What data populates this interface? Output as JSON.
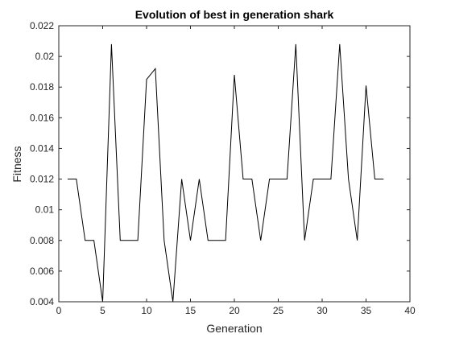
{
  "chart_data": {
    "type": "line",
    "title": "Evolution of best in generation shark",
    "xlabel": "Generation",
    "ylabel": "Fitness",
    "xlim": [
      0,
      40
    ],
    "ylim": [
      0.004,
      0.022
    ],
    "xticks": [
      0,
      5,
      10,
      15,
      20,
      25,
      30,
      35,
      40
    ],
    "yticks": [
      0.004,
      0.006,
      0.008,
      0.01,
      0.012,
      0.014,
      0.016,
      0.018,
      0.02,
      0.022
    ],
    "xtick_labels": [
      "0",
      "5",
      "10",
      "15",
      "20",
      "25",
      "30",
      "35",
      "40"
    ],
    "ytick_labels": [
      "0.004",
      "0.006",
      "0.008",
      "0.01",
      "0.012",
      "0.014",
      "0.016",
      "0.018",
      "0.02",
      "0.022"
    ],
    "grid": false,
    "line_color": "#000000",
    "x": [
      1,
      2,
      3,
      4,
      5,
      6,
      7,
      8,
      9,
      10,
      11,
      12,
      13,
      14,
      15,
      16,
      17,
      18,
      19,
      20,
      21,
      22,
      23,
      24,
      25,
      26,
      27,
      28,
      29,
      30,
      31,
      32,
      33,
      34,
      35,
      36,
      37
    ],
    "series": [
      {
        "values": [
          0.012,
          0.012,
          0.008,
          0.008,
          0.004,
          0.0208,
          0.008,
          0.008,
          0.008,
          0.0185,
          0.0192,
          0.008,
          0.004,
          0.012,
          0.008,
          0.012,
          0.008,
          0.008,
          0.008,
          0.0188,
          0.012,
          0.012,
          0.008,
          0.012,
          0.012,
          0.012,
          0.0208,
          0.008,
          0.012,
          0.012,
          0.012,
          0.0208,
          0.012,
          0.008,
          0.0181,
          0.012,
          0.012
        ]
      }
    ]
  }
}
